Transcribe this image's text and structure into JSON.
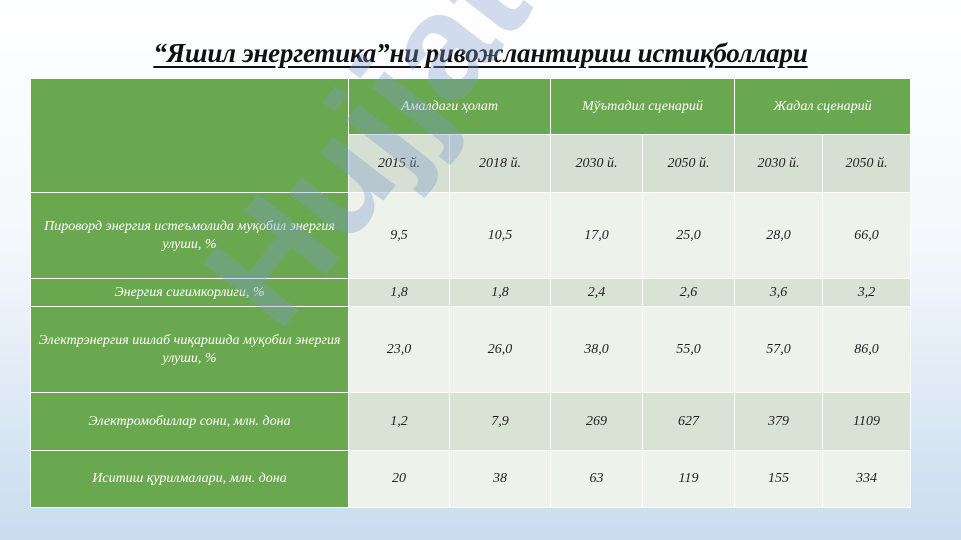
{
  "slide": {
    "title": "“Яшил энергетика”ни ривожлантириш истиқболлари",
    "watermark": "Hujjat.uz"
  },
  "table": {
    "groups": [
      "Амалдаги ҳолат",
      "Мўътадил сценарий",
      "Жадал сценарий"
    ],
    "years": [
      "2015 й.",
      "2018 й.",
      "2030 й.",
      "2050 й.",
      "2030 й.",
      "2050 й."
    ],
    "rows": [
      {
        "label": "Пироворд энергия истеъмолида муқобил энергия улуши, %",
        "values": [
          "9,5",
          "10,5",
          "17,0",
          "25,0",
          "28,0",
          "66,0"
        ]
      },
      {
        "label": "Энергия сиғимкорлиги, %",
        "values": [
          "1,8",
          "1,8",
          "2,4",
          "2,6",
          "3,6",
          "3,2"
        ]
      },
      {
        "label": "Электрэнергия ишлаб чиқаришда муқобил энергия улуши, %",
        "values": [
          "23,0",
          "26,0",
          "38,0",
          "55,0",
          "57,0",
          "86,0"
        ]
      },
      {
        "label": "Электромобиллар сони, млн. дона",
        "values": [
          "1,2",
          "7,9",
          "269",
          "627",
          "379",
          "1109"
        ]
      },
      {
        "label": "Иситиш қурилмалари, млн. дона",
        "values": [
          "20",
          "38",
          "63",
          "119",
          "155",
          "334"
        ]
      }
    ]
  },
  "colors": {
    "header": "#6aa84f",
    "cell_dark": "#d9e3d5",
    "cell_light": "#edf2eb"
  }
}
